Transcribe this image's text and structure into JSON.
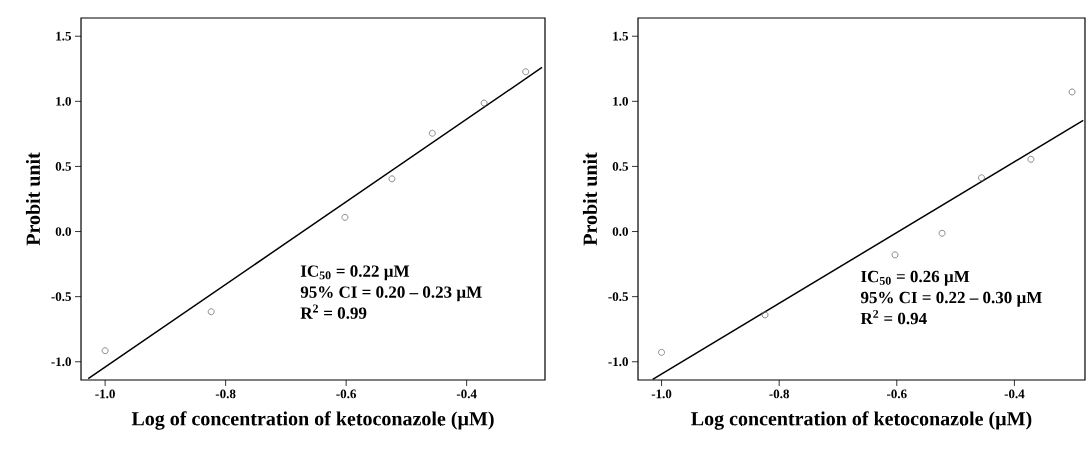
{
  "chart_data": [
    {
      "type": "scatter",
      "xlabel": "Log of concentration of ketoconazole (µM)",
      "ylabel": "Probit unit",
      "xlim": [
        -1.04,
        -0.27
      ],
      "ylim": [
        -1.14,
        1.64
      ],
      "xticks": [
        {
          "value": -1.0,
          "label": "-1.0"
        },
        {
          "value": -0.8,
          "label": "-0.8"
        },
        {
          "value": -0.6,
          "label": "-0.6"
        },
        {
          "value": -0.4,
          "label": "-0.4"
        }
      ],
      "yticks": [
        {
          "value": -1.0,
          "label": "-1.0"
        },
        {
          "value": -0.5,
          "label": "-0.5"
        },
        {
          "value": 0.0,
          "label": "0.0"
        },
        {
          "value": 0.5,
          "label": "0.5"
        },
        {
          "value": 1.0,
          "label": "1.0"
        },
        {
          "value": 1.5,
          "label": "1.5"
        }
      ],
      "grid": false,
      "series": [
        {
          "marker": "circle",
          "color": "#707070",
          "x": [
            -1.0,
            -0.824,
            -0.602,
            -0.524,
            -0.457,
            -0.371,
            -0.302
          ],
          "values": [
            -0.915,
            -0.616,
            0.109,
            0.405,
            0.755,
            0.987,
            1.227
          ]
        },
        {
          "type": "line",
          "color": "#000000",
          "x": [
            -1.028,
            -0.275
          ],
          "values": [
            -1.13,
            1.26
          ]
        }
      ],
      "annotations": [
        "IC$_{50}$ = 0.22 µM",
        "95% CI = 0.20 – 0.23 µM",
        "R$^{2}$ = 0.99"
      ]
    },
    {
      "type": "scatter",
      "xlabel": "Log concentration of ketoconazole (µM)",
      "ylabel": "Probit unit",
      "xlim": [
        -1.04,
        -0.28
      ],
      "ylim": [
        -1.14,
        1.64
      ],
      "xticks": [
        {
          "value": -1.0,
          "label": "-1.0"
        },
        {
          "value": -0.8,
          "label": "-0.8"
        },
        {
          "value": -0.6,
          "label": "-0.6"
        },
        {
          "value": -0.4,
          "label": "-0.4"
        }
      ],
      "yticks": [
        {
          "value": -1.0,
          "label": "-1.0"
        },
        {
          "value": -0.5,
          "label": "-0.5"
        },
        {
          "value": 0.0,
          "label": "0.0"
        },
        {
          "value": 0.5,
          "label": "0.5"
        },
        {
          "value": 1.0,
          "label": "1.0"
        },
        {
          "value": 1.5,
          "label": "1.5"
        }
      ],
      "grid": false,
      "series": [
        {
          "marker": "circle",
          "color": "#707070",
          "x": [
            -1.0,
            -0.824,
            -0.603,
            -0.523,
            -0.456,
            -0.372,
            -0.302
          ],
          "values": [
            -0.928,
            -0.64,
            -0.179,
            -0.013,
            0.413,
            0.555,
            1.072
          ]
        },
        {
          "type": "line",
          "color": "#000000",
          "x": [
            -1.015,
            -0.283
          ],
          "values": [
            -1.135,
            0.853
          ]
        }
      ],
      "annotations": [
        "IC$_{50}$ = 0.26 µM",
        "95% CI = 0.22 – 0.30 µM",
        "R$^{2}$ = 0.94"
      ]
    }
  ]
}
